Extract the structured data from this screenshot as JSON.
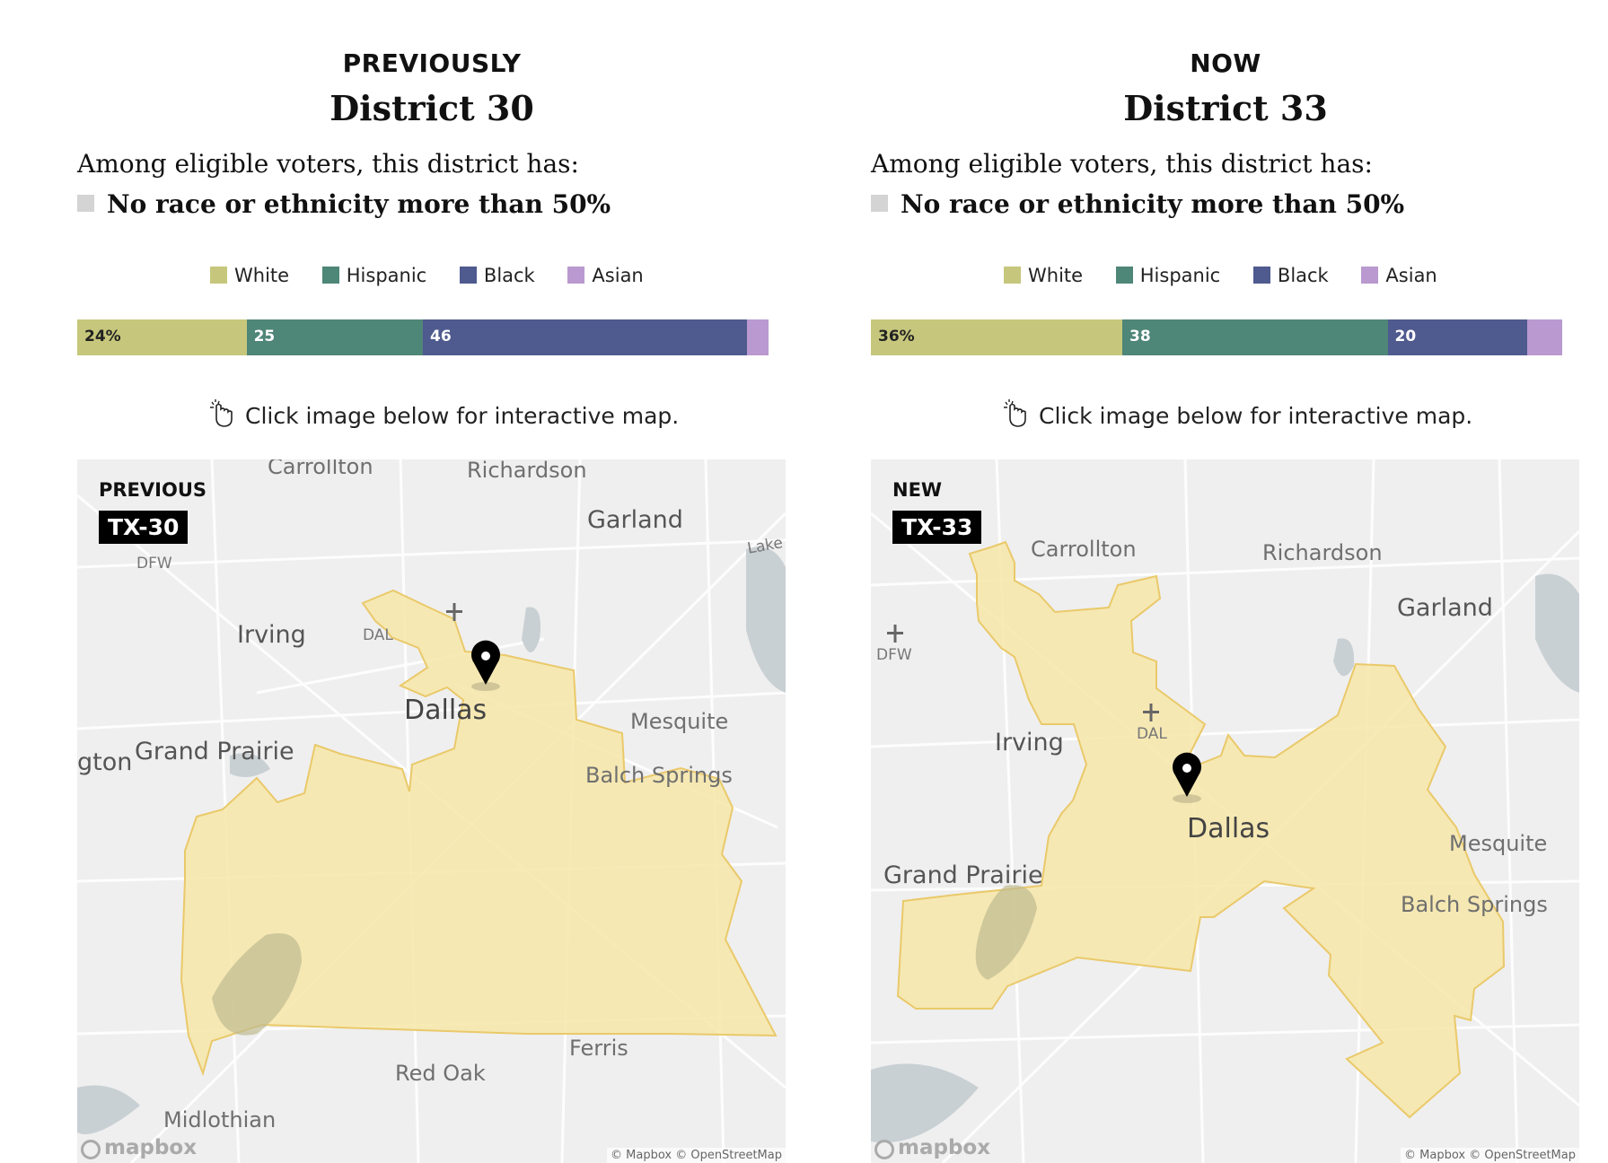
{
  "hint_text": "Click image below for interactive map.",
  "legend": [
    {
      "label": "White",
      "color": "#c6c77c"
    },
    {
      "label": "Hispanic",
      "color": "#4e8677"
    },
    {
      "label": "Black",
      "color": "#4f5a8e"
    },
    {
      "label": "Asian",
      "color": "#b999cf"
    }
  ],
  "previous": {
    "eyebrow": "PREVIOUSLY",
    "title": "District 30",
    "among_text": "Among eligible voters, this district has:",
    "majority_text": "No race or ethnicity more than 50%",
    "bar": [
      {
        "group": "White",
        "value": 24,
        "label": "24%"
      },
      {
        "group": "Hispanic",
        "value": 25,
        "label": "25"
      },
      {
        "group": "Black",
        "value": 46,
        "label": "46"
      },
      {
        "group": "Asian",
        "value": 3,
        "label": ""
      }
    ],
    "map": {
      "badge_caption": "PREVIOUS",
      "badge": "TX-30",
      "labels": [
        "Carrollton",
        "Richardson",
        "Garland",
        "Lake Hubb",
        "DFW",
        "Irving",
        "DAL",
        "Dallas",
        "Mesquite",
        "gton",
        "Grand Prairie",
        "Balch Springs",
        "Ferris",
        "Red Oak",
        "Midlothian"
      ],
      "mapbox": "mapbox",
      "attribution": "© Mapbox © OpenStreetMap"
    }
  },
  "now": {
    "eyebrow": "NOW",
    "title": "District 33",
    "among_text": "Among eligible voters, this district has:",
    "majority_text": "No race or ethnicity more than 50%",
    "bar": [
      {
        "group": "White",
        "value": 36,
        "label": "36%"
      },
      {
        "group": "Hispanic",
        "value": 38,
        "label": "38"
      },
      {
        "group": "Black",
        "value": 20,
        "label": "20"
      },
      {
        "group": "Asian",
        "value": 5,
        "label": ""
      }
    ],
    "map": {
      "badge_caption": "NEW",
      "badge": "TX-33",
      "labels": [
        "Carrollton",
        "Richardson",
        "Garland",
        "DFW",
        "Irving",
        "DAL",
        "Dallas",
        "Mesquite",
        "Grand Prairie",
        "Balch Springs"
      ],
      "mapbox": "mapbox",
      "attribution": "© Mapbox © OpenStreetMap"
    }
  }
}
